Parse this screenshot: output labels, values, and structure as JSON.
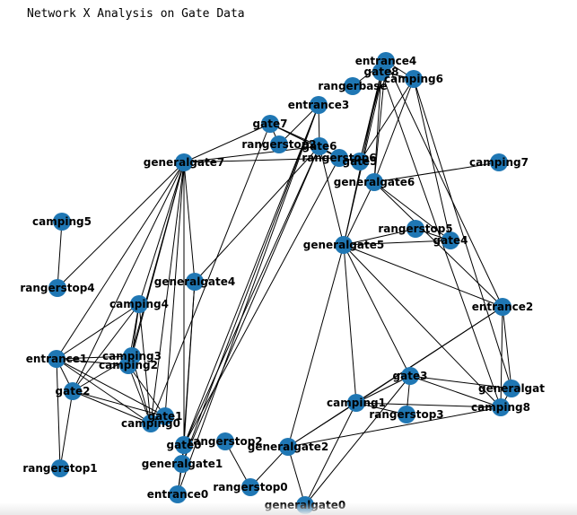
{
  "title": "Network X Analysis on Gate Data",
  "colors": {
    "node": "#1f77b4",
    "edge": "#000000",
    "label": "#000000",
    "background": "#ffffff"
  },
  "graph": {
    "nodes": [
      "entrance4",
      "gate8",
      "rangerbase",
      "camping6",
      "entrance3",
      "gate7",
      "rangerstop2",
      "gate6",
      "rangerstop6",
      "gate5",
      "generalgate7",
      "camping7",
      "generalgate6",
      "camping5",
      "rangerstop5",
      "gate4",
      "generalgate5",
      "rangerstop4",
      "generalgate4",
      "camping4",
      "entrance2",
      "entrance1",
      "camping3",
      "camping2",
      "gate2",
      "gate3",
      "generalgate",
      "camping1",
      "camping8",
      "rangerstop3",
      "gate1",
      "camping0",
      "gate0",
      "rangerstop2b",
      "generalgate2",
      "rangerstop1",
      "generalgate1",
      "rangerstop0",
      "entrance0",
      "generalgate0"
    ],
    "labels": {
      "entrance4": "entrance4",
      "gate8": "gate8",
      "rangerbase": "rangerbase",
      "camping6": "camping6",
      "entrance3": "entrance3",
      "gate7": "gate7",
      "rangerstop2": "rangerstop2",
      "gate6": "gate6",
      "rangerstop6": "rangerstop6",
      "gate5": "gate5",
      "generalgate7": "generalgate7",
      "camping7": "camping7",
      "generalgate6": "generalgate6",
      "camping5": "camping5",
      "rangerstop5": "rangerstop5",
      "gate4": "gate4",
      "generalgate5": "generalgate5",
      "rangerstop4": "rangerstop4",
      "generalgate4": "generalgate4",
      "camping4": "camping4",
      "entrance2": "entrance2",
      "entrance1": "entrance1",
      "camping3": "camping3",
      "camping2": "camping2",
      "gate2": "gate2",
      "gate3": "gate3",
      "generalgate": "generalgat",
      "camping1": "camping1",
      "camping8": "camping8",
      "rangerstop3": "rangerstop3",
      "gate1": "gate1",
      "camping0": "camping0",
      "gate0": "gate0",
      "rangerstop2b": "rangerstop2",
      "generalgate2": "generalgate2",
      "rangerstop1": "rangerstop1",
      "generalgate1": "generalgate1",
      "rangerstop0": "rangerstop0",
      "entrance0": "entrance0",
      "generalgate0": "generalgate0"
    },
    "edges": [
      [
        "entrance4",
        "gate8"
      ],
      [
        "entrance4",
        "camping6"
      ],
      [
        "entrance4",
        "generalgate6"
      ],
      [
        "entrance4",
        "gate5"
      ],
      [
        "entrance4",
        "rangerbase"
      ],
      [
        "entrance4",
        "generalgate5"
      ],
      [
        "gate8",
        "camping6"
      ],
      [
        "gate8",
        "generalgate6"
      ],
      [
        "gate8",
        "generalgate5"
      ],
      [
        "gate8",
        "gate5"
      ],
      [
        "camping6",
        "gate5"
      ],
      [
        "camping6",
        "generalgate6"
      ],
      [
        "camping6",
        "gate4"
      ],
      [
        "camping6",
        "generalgate"
      ],
      [
        "entrance4",
        "entrance2"
      ],
      [
        "gate8",
        "camping8"
      ],
      [
        "entrance3",
        "rangerstop2"
      ],
      [
        "entrance3",
        "gate6"
      ],
      [
        "entrance3",
        "gate0"
      ],
      [
        "entrance3",
        "generalgate1"
      ],
      [
        "entrance3",
        "entrance0"
      ],
      [
        "gate7",
        "rangerstop2"
      ],
      [
        "gate7",
        "gate6"
      ],
      [
        "gate7",
        "rangerstop6"
      ],
      [
        "gate7",
        "generalgate7"
      ],
      [
        "gate7",
        "camping0"
      ],
      [
        "gate6",
        "rangerstop6"
      ],
      [
        "gate6",
        "gate0"
      ],
      [
        "gate6",
        "generalgate1"
      ],
      [
        "gate6",
        "generalgate4"
      ],
      [
        "rangerstop6",
        "gate5"
      ],
      [
        "generalgate7",
        "rangerstop6"
      ],
      [
        "generalgate7",
        "camping4"
      ],
      [
        "generalgate7",
        "camping3"
      ],
      [
        "generalgate7",
        "camping2"
      ],
      [
        "generalgate7",
        "gate2"
      ],
      [
        "generalgate7",
        "entrance1"
      ],
      [
        "generalgate7",
        "generalgate4"
      ],
      [
        "generalgate7",
        "gate1"
      ],
      [
        "generalgate7",
        "rangerstop4"
      ],
      [
        "generalgate7",
        "camping0"
      ],
      [
        "generalgate7",
        "gate0"
      ],
      [
        "generalgate7",
        "gate6"
      ],
      [
        "camping5",
        "rangerstop4"
      ],
      [
        "generalgate6",
        "camping7"
      ],
      [
        "generalgate6",
        "generalgate5"
      ],
      [
        "generalgate6",
        "gate4"
      ],
      [
        "generalgate6",
        "entrance2"
      ],
      [
        "rangerstop5",
        "gate4"
      ],
      [
        "rangerstop5",
        "generalgate5"
      ],
      [
        "generalgate5",
        "gate4"
      ],
      [
        "generalgate5",
        "entrance2"
      ],
      [
        "generalgate5",
        "gate3"
      ],
      [
        "generalgate5",
        "camping1"
      ],
      [
        "generalgate5",
        "camping8"
      ],
      [
        "generalgate5",
        "generalgate2"
      ],
      [
        "generalgate5",
        "gate6"
      ],
      [
        "generalgate4",
        "generalgate1"
      ],
      [
        "generalgate4",
        "gate0"
      ],
      [
        "camping4",
        "entrance1"
      ],
      [
        "camping4",
        "gate2"
      ],
      [
        "camping4",
        "camping3"
      ],
      [
        "camping4",
        "camping2"
      ],
      [
        "camping4",
        "camping0"
      ],
      [
        "entrance1",
        "camping3"
      ],
      [
        "entrance1",
        "camping2"
      ],
      [
        "entrance1",
        "gate2"
      ],
      [
        "entrance1",
        "rangerstop1"
      ],
      [
        "entrance1",
        "gate1"
      ],
      [
        "entrance1",
        "camping0"
      ],
      [
        "gate2",
        "rangerstop1"
      ],
      [
        "gate2",
        "camping0"
      ],
      [
        "gate2",
        "camping3"
      ],
      [
        "gate2",
        "gate1"
      ],
      [
        "camping3",
        "camping0"
      ],
      [
        "camping2",
        "camping0"
      ],
      [
        "camping2",
        "gate1"
      ],
      [
        "gate1",
        "camping0"
      ],
      [
        "gate3",
        "camping1"
      ],
      [
        "gate3",
        "rangerstop3"
      ],
      [
        "gate3",
        "camping8"
      ],
      [
        "gate3",
        "generalgate"
      ],
      [
        "camping1",
        "camping8"
      ],
      [
        "camping1",
        "generalgate2"
      ],
      [
        "camping1",
        "rangerstop3"
      ],
      [
        "generalgate",
        "camping8"
      ],
      [
        "entrance2",
        "camping1"
      ],
      [
        "entrance2",
        "generalgate"
      ],
      [
        "entrance2",
        "camping8"
      ],
      [
        "entrance2",
        "generalgate2"
      ],
      [
        "generalgate2",
        "rangerstop0"
      ],
      [
        "generalgate2",
        "generalgate0"
      ],
      [
        "generalgate2",
        "camping8"
      ],
      [
        "rangerstop2b",
        "rangerstop0"
      ],
      [
        "gate0",
        "generalgate1"
      ],
      [
        "gate0",
        "entrance0"
      ],
      [
        "generalgate1",
        "entrance0"
      ],
      [
        "camping1",
        "generalgate0"
      ],
      [
        "gate3",
        "generalgate0"
      ],
      [
        "rangerstop6",
        "gate0"
      ]
    ]
  }
}
